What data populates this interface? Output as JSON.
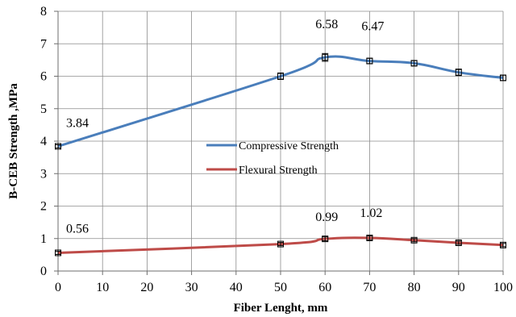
{
  "chart_data": {
    "type": "line",
    "xlabel": "Fiber Lenght, mm",
    "ylabel": "B-CEB Strength ,MPa",
    "xlim": [
      0,
      100
    ],
    "ylim": [
      0,
      8
    ],
    "x_ticks": [
      "0",
      "10",
      "20",
      "30",
      "40",
      "50",
      "60",
      "70",
      "80",
      "90",
      "100"
    ],
    "y_ticks": [
      "0",
      "1",
      "2",
      "3",
      "4",
      "5",
      "6",
      "7",
      "8"
    ],
    "grid": true,
    "error_bars": true,
    "legend_position": "center",
    "series": [
      {
        "name": "Compressive Strength",
        "color": "#4a7ebb",
        "x": [
          0,
          50,
          60,
          70,
          80,
          90,
          100
        ],
        "values": [
          3.84,
          6.0,
          6.58,
          6.47,
          6.4,
          6.12,
          5.95
        ],
        "errors": [
          0.05,
          0.1,
          0.12,
          0.08,
          0.08,
          0.1,
          0.08
        ]
      },
      {
        "name": "Flexural Strength",
        "color": "#be4b48",
        "x": [
          0,
          50,
          60,
          70,
          80,
          90,
          100
        ],
        "values": [
          0.56,
          0.83,
          0.99,
          1.02,
          0.95,
          0.87,
          0.8
        ],
        "errors": [
          0.05,
          0.05,
          0.06,
          0.06,
          0.05,
          0.05,
          0.05
        ]
      }
    ],
    "annotations": [
      {
        "text": "3.84",
        "x": 0,
        "y": 3.84,
        "series": 0
      },
      {
        "text": "6.58",
        "x": 60,
        "y": 6.58,
        "series": 0
      },
      {
        "text": "6.47",
        "x": 70,
        "y": 6.47,
        "series": 0
      },
      {
        "text": "0.56",
        "x": 0,
        "y": 0.56,
        "series": 1
      },
      {
        "text": "0.99",
        "x": 60,
        "y": 0.99,
        "series": 1
      },
      {
        "text": "1.02",
        "x": 70,
        "y": 1.02,
        "series": 1
      }
    ]
  }
}
